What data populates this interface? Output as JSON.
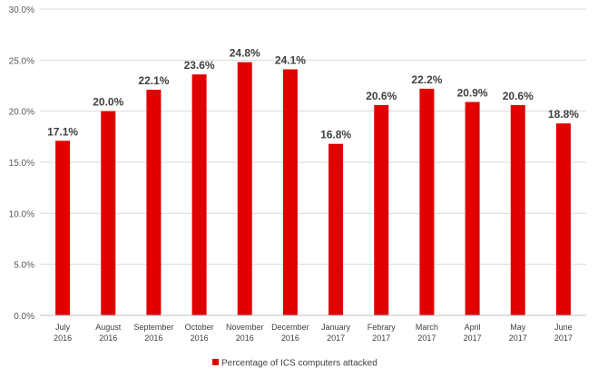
{
  "chart_data": {
    "type": "bar",
    "title": "",
    "xlabel": "",
    "ylabel": "",
    "categories": [
      [
        "July",
        "2016"
      ],
      [
        "August",
        "2016"
      ],
      [
        "September",
        "2016"
      ],
      [
        "October",
        "2016"
      ],
      [
        "November",
        "2016"
      ],
      [
        "December",
        "2016"
      ],
      [
        "January",
        "2017"
      ],
      [
        "Febrary",
        "2017"
      ],
      [
        "March",
        "2017"
      ],
      [
        "April",
        "2017"
      ],
      [
        "May",
        "2017"
      ],
      [
        "June",
        "2017"
      ]
    ],
    "values": [
      17.1,
      20.0,
      22.1,
      23.6,
      24.8,
      24.1,
      16.8,
      20.6,
      22.2,
      20.9,
      20.6,
      18.8
    ],
    "data_labels": [
      "17.1%",
      "20.0%",
      "22.1%",
      "23.6%",
      "24.8%",
      "24.1%",
      "16.8%",
      "20.6%",
      "22.2%",
      "20.9%",
      "20.6%",
      "18.8%"
    ],
    "ylim": [
      0,
      30
    ],
    "yticks": [
      0,
      5,
      10,
      15,
      20,
      25,
      30
    ],
    "ytick_labels": [
      "0.0%",
      "5.0%",
      "10.0%",
      "15.0%",
      "20.0%",
      "25.0%",
      "30.0%"
    ],
    "grid": true,
    "legend_position": "bottom-center",
    "series": [
      {
        "name": "Percentage of ICS computers attacked",
        "color": "#e00000"
      }
    ],
    "colors": {
      "bar": "#e00000",
      "grid": "#d9d9d9",
      "axis": "#bfbfbf"
    }
  }
}
